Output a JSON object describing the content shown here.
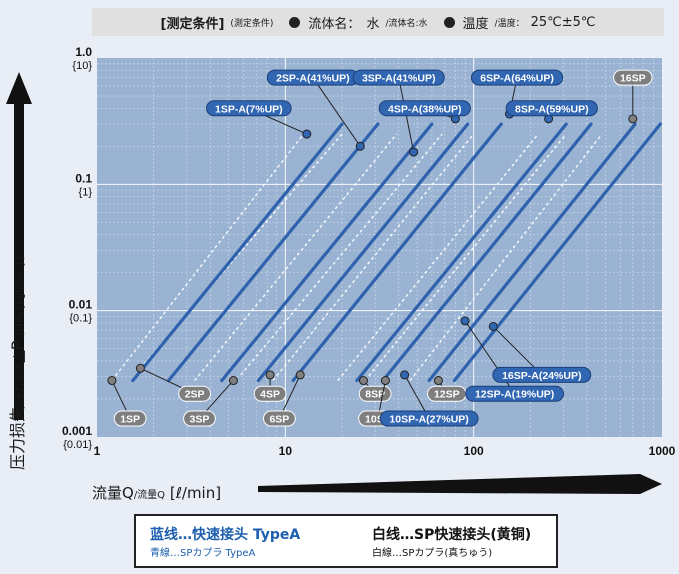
{
  "conditions": {
    "bracket_label": "[测定条件]",
    "bracket_label_sub": "(測定条件)",
    "fluid_label": "流体名：",
    "fluid_value": "水",
    "fluid_sub": "/流体名:水",
    "temp_label": "温度",
    "temp_sub": "/温度：",
    "temp_value": "25℃±5℃"
  },
  "axes": {
    "y_label_main": "压力损失",
    "y_label_sub": "/圧力損失",
    "y_label_tail": "△P",
    "y_unit": "[MPa{kgf/cm²}]",
    "x_label_main": "流量Q",
    "x_label_sub": "/流量Q",
    "x_unit": "[ℓ/min]"
  },
  "legend": {
    "blue_main": "蓝线…快速接头 TypeA",
    "blue_sub": "青線…SPカプラ TypeA",
    "white_main": "白线…SP快速接头(黄铜)",
    "white_sub": "白線…SPカプラ(真ちゅう)"
  },
  "chart_data": {
    "type": "line",
    "scale": "log-log",
    "xlim": [
      1,
      1000
    ],
    "ylim": [
      0.001,
      1.0
    ],
    "x_ticks": [
      "1",
      "10",
      "100",
      "1000"
    ],
    "y_ticks": [
      {
        "value": 1.0,
        "label": "1.0",
        "alt": "{10}"
      },
      {
        "value": 0.1,
        "label": "0.1",
        "alt": "{1}"
      },
      {
        "value": 0.01,
        "label": "0.01",
        "alt": "{0.1}"
      },
      {
        "value": 0.001,
        "label": "0.001",
        "alt": "{0.01}"
      }
    ],
    "grid": true,
    "colors": {
      "plot_bg": "#9ab3d3",
      "blue_line": "#2f62ad",
      "white_line": "#f5f7fa",
      "blue_tag": "#3166b3",
      "gray_tag": "#7e7e7e",
      "marker": "#808080"
    },
    "white_series": [
      {
        "name": "1SP",
        "x": [
          1.2,
          12.5
        ],
        "y": [
          0.0028,
          0.25
        ]
      },
      {
        "name": "2SP",
        "x": [
          1.7,
          20
        ],
        "y": [
          0.0035,
          0.25
        ]
      },
      {
        "name": "3SP",
        "x": [
          3.3,
          39
        ],
        "y": [
          0.0028,
          0.25
        ]
      },
      {
        "name": "4SP",
        "x": [
          5.8,
          68
        ],
        "y": [
          0.0031,
          0.25
        ]
      },
      {
        "name": "6SP",
        "x": [
          8.6,
          100
        ],
        "y": [
          0.0028,
          0.25
        ]
      },
      {
        "name": "8SP",
        "x": [
          19,
          220
        ],
        "y": [
          0.0028,
          0.25
        ]
      },
      {
        "name": "10SP",
        "x": [
          26.5,
          310
        ],
        "y": [
          0.0028,
          0.25
        ]
      },
      {
        "name": "12SP",
        "x": [
          46,
          480
        ],
        "y": [
          0.0028,
          0.25
        ]
      }
    ],
    "blue_series": [
      {
        "name": "1SP-A",
        "x": [
          1.55,
          20
        ],
        "y": [
          0.0028,
          0.3
        ]
      },
      {
        "name": "2SP-A",
        "x": [
          2.4,
          31
        ],
        "y": [
          0.0028,
          0.3
        ]
      },
      {
        "name": "3SP-A",
        "x": [
          4.6,
          60
        ],
        "y": [
          0.0028,
          0.3
        ]
      },
      {
        "name": "4SP-A",
        "x": [
          7.2,
          93
        ],
        "y": [
          0.0028,
          0.3
        ]
      },
      {
        "name": "6SP-A",
        "x": [
          11,
          140
        ],
        "y": [
          0.0028,
          0.3
        ]
      },
      {
        "name": "8SP-A",
        "x": [
          24,
          310
        ],
        "y": [
          0.0028,
          0.3
        ]
      },
      {
        "name": "10SP-A",
        "x": [
          33,
          420
        ],
        "y": [
          0.0028,
          0.3
        ]
      },
      {
        "name": "12SP-A",
        "x": [
          58,
          720
        ],
        "y": [
          0.0028,
          0.3
        ]
      },
      {
        "name": "16SP-A",
        "x": [
          79,
          980
        ],
        "y": [
          0.0028,
          0.3
        ]
      }
    ],
    "white_labels": [
      {
        "text": "1SP",
        "marker": [
          1.2,
          0.0028
        ],
        "tag": [
          1.5,
          0.0014
        ]
      },
      {
        "text": "2SP",
        "marker": [
          1.7,
          0.0035
        ],
        "tag": [
          3.3,
          0.0022
        ]
      },
      {
        "text": "3SP",
        "marker": [
          5.3,
          0.0028
        ],
        "tag": [
          3.5,
          0.0014
        ]
      },
      {
        "text": "4SP",
        "marker": [
          8.3,
          0.0031
        ],
        "tag": [
          8.3,
          0.0022
        ]
      },
      {
        "text": "6SP",
        "marker": [
          12,
          0.0031
        ],
        "tag": [
          9.3,
          0.0014
        ]
      },
      {
        "text": "8SP",
        "marker": [
          26,
          0.0028
        ],
        "tag": [
          30,
          0.0022
        ]
      },
      {
        "text": "10SP",
        "marker": [
          34,
          0.0028
        ],
        "tag": [
          31,
          0.0014
        ]
      },
      {
        "text": "12SP",
        "marker": [
          65,
          0.0028
        ],
        "tag": [
          72,
          0.0022
        ]
      },
      {
        "text": "16SP",
        "marker": [
          700,
          0.33
        ],
        "tag": [
          700,
          0.7
        ]
      }
    ],
    "blue_labels": [
      {
        "text": "1SP-A(7%UP)",
        "marker": [
          13,
          0.25
        ],
        "tag": [
          6.4,
          0.4
        ]
      },
      {
        "text": "2SP-A(41%UP)",
        "marker": [
          25,
          0.2
        ],
        "tag": [
          14,
          0.7
        ]
      },
      {
        "text": "3SP-A(41%UP)",
        "marker": [
          48,
          0.18
        ],
        "tag": [
          40,
          0.7
        ]
      },
      {
        "text": "4SP-A(38%UP)",
        "marker": [
          80,
          0.33
        ],
        "tag": [
          55,
          0.4
        ]
      },
      {
        "text": "6SP-A(64%UP)",
        "marker": [
          155,
          0.36
        ],
        "tag": [
          170,
          0.7
        ]
      },
      {
        "text": "8SP-A(59%UP)",
        "marker": [
          250,
          0.33
        ],
        "tag": [
          260,
          0.4
        ]
      },
      {
        "text": "10SP-A(27%UP)",
        "marker": [
          43,
          0.0031
        ],
        "tag": [
          58,
          0.0014
        ]
      },
      {
        "text": "12SP-A(19%UP)",
        "marker": [
          90,
          0.0083
        ],
        "tag": [
          165,
          0.0022
        ]
      },
      {
        "text": "16SP-A(24%UP)",
        "marker": [
          127,
          0.0075
        ],
        "tag": [
          230,
          0.0031
        ]
      }
    ]
  }
}
